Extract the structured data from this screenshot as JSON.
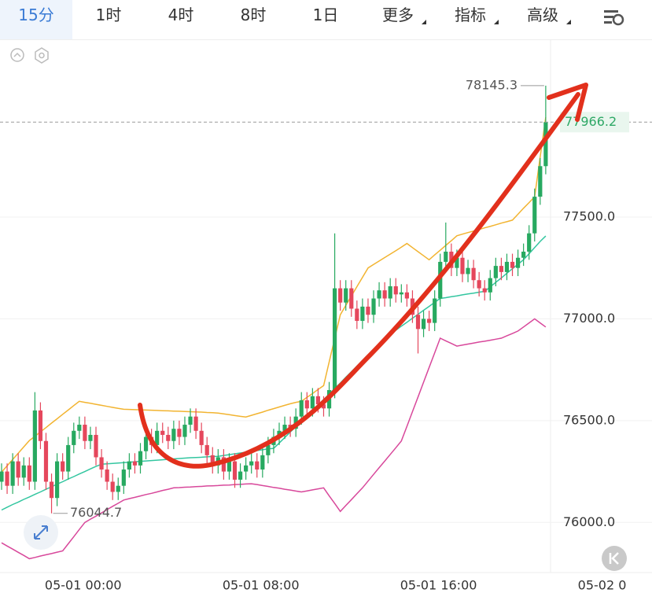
{
  "toolbar": {
    "tabs": [
      "15分",
      "1时",
      "4时",
      "8时",
      "1日",
      "更多",
      "指标",
      "高级"
    ]
  },
  "chart_data": {
    "type": "candlestick",
    "categories": [
      null,
      null,
      null,
      null,
      null,
      null,
      null,
      null,
      null,
      null,
      null,
      null,
      null,
      null,
      null,
      "05-01 00:00",
      null,
      null,
      null,
      null,
      null,
      null,
      null,
      null,
      null,
      null,
      null,
      null,
      null,
      null,
      null,
      null,
      null,
      null,
      null,
      null,
      null,
      null,
      null,
      null,
      null,
      null,
      null,
      null,
      null,
      null,
      null,
      "05-01 08:00",
      null,
      null,
      null,
      null,
      null,
      null,
      null,
      null,
      null,
      null,
      null,
      null,
      null,
      null,
      null,
      null,
      null,
      null,
      null,
      null,
      null,
      null,
      null,
      null,
      null,
      null,
      null,
      null,
      null,
      null,
      null,
      "05-01 16:00",
      null,
      null,
      null,
      null,
      null,
      null,
      null,
      null,
      null,
      null,
      null,
      null,
      null,
      null,
      null,
      null,
      null,
      null,
      null,
      null,
      null,
      null,
      null,
      null,
      null,
      null,
      null,
      null,
      null,
      null,
      null,
      "05-02 0"
    ],
    "open": [
      76200,
      76250,
      76180,
      76300,
      76220,
      76280,
      76200,
      76550,
      76400,
      76200,
      76120,
      76300,
      76250,
      76380,
      76450,
      76480,
      76400,
      76430,
      76320,
      76260,
      76200,
      76150,
      76180,
      76260,
      76300,
      76280,
      76350,
      76420,
      76380,
      76450,
      76430,
      76400,
      76460,
      76420,
      76480,
      76520,
      76450,
      76380,
      76330,
      76280,
      76320,
      76250,
      76300,
      76210,
      76250,
      76280,
      76300,
      76260,
      76330,
      76380,
      76420,
      76450,
      76480,
      76460,
      76520,
      76600,
      76560,
      76620,
      76580,
      76560,
      76650,
      77150,
      77080,
      77150,
      77050,
      76990,
      77060,
      77020,
      77100,
      77140,
      77100,
      77160,
      77120,
      77130,
      77100,
      77020,
      76950,
      77000,
      76980,
      77100,
      77280,
      77330,
      77250,
      77300,
      77220,
      77250,
      77190,
      77150,
      77130,
      77200,
      77260,
      77230,
      77280,
      77250,
      77300,
      77330,
      77420,
      77600,
      77750,
      null,
      null,
      null,
      null,
      null,
      null,
      null,
      null,
      null,
      null,
      null,
      null,
      null
    ],
    "high": [
      76290,
      76290,
      76340,
      76340,
      76320,
      76320,
      76640,
      76590,
      76440,
      76240,
      76340,
      76340,
      76420,
      76490,
      76520,
      76520,
      76470,
      76470,
      76360,
      76300,
      76240,
      76220,
      76300,
      76340,
      76340,
      76390,
      76460,
      76460,
      76490,
      76490,
      76470,
      76500,
      76500,
      76520,
      76560,
      76560,
      76490,
      76420,
      76370,
      76360,
      76360,
      76340,
      76340,
      76290,
      76320,
      76340,
      76340,
      76370,
      76420,
      76460,
      76490,
      76520,
      76520,
      76560,
      76640,
      76640,
      76660,
      76660,
      76620,
      76690,
      77420,
      77190,
      77190,
      77190,
      77090,
      77100,
      77100,
      77140,
      77180,
      77180,
      77200,
      77200,
      77170,
      77170,
      77140,
      77060,
      77040,
      77040,
      77140,
      77320,
      77473,
      77370,
      77340,
      77340,
      77290,
      77290,
      77230,
      77190,
      77240,
      77300,
      77300,
      77320,
      77320,
      77340,
      77370,
      77460,
      77640,
      77790,
      78145.3,
      null,
      null,
      null,
      null,
      null,
      null,
      null,
      null,
      null,
      null,
      null,
      null,
      null
    ],
    "low": [
      76160,
      76140,
      76140,
      76180,
      76180,
      76160,
      76160,
      76360,
      76160,
      76044.7,
      76080,
      76210,
      76210,
      76340,
      76410,
      76360,
      76360,
      76280,
      76220,
      76160,
      76110,
      76110,
      76140,
      76220,
      76240,
      76240,
      76310,
      76340,
      76340,
      76390,
      76360,
      76360,
      76380,
      76380,
      76440,
      76410,
      76340,
      76290,
      76240,
      76240,
      76210,
      76210,
      76170,
      76170,
      76210,
      76240,
      76220,
      76220,
      76290,
      76340,
      76380,
      76410,
      76420,
      76420,
      76480,
      76520,
      76520,
      76540,
      76520,
      76520,
      76610,
      77040,
      77040,
      77010,
      76950,
      76950,
      76980,
      76980,
      77060,
      77060,
      77060,
      77080,
      77080,
      77060,
      76980,
      76830,
      76910,
      76940,
      76940,
      77060,
      77240,
      77210,
      77210,
      77180,
      77180,
      77150,
      77110,
      77090,
      77090,
      77160,
      77190,
      77190,
      77210,
      77210,
      77260,
      77290,
      77380,
      77560,
      77710,
      null,
      null,
      null,
      null,
      null,
      null,
      null,
      null,
      null,
      null,
      null,
      null,
      null
    ],
    "close": [
      76250,
      76180,
      76300,
      76220,
      76280,
      76200,
      76550,
      76400,
      76200,
      76120,
      76300,
      76250,
      76380,
      76450,
      76480,
      76400,
      76430,
      76320,
      76260,
      76200,
      76150,
      76180,
      76260,
      76300,
      76280,
      76350,
      76420,
      76380,
      76450,
      76430,
      76400,
      76460,
      76420,
      76480,
      76520,
      76450,
      76380,
      76330,
      76280,
      76320,
      76250,
      76300,
      76210,
      76250,
      76280,
      76300,
      76260,
      76330,
      76380,
      76420,
      76450,
      76480,
      76460,
      76520,
      76600,
      76560,
      76620,
      76580,
      76560,
      76650,
      77150,
      77080,
      77150,
      77050,
      76990,
      77060,
      77020,
      77100,
      77140,
      77100,
      77160,
      77120,
      77130,
      77100,
      77020,
      76950,
      77000,
      76980,
      77100,
      77280,
      77330,
      77250,
      77300,
      77220,
      77250,
      77190,
      77150,
      77130,
      77200,
      77260,
      77230,
      77280,
      77250,
      77300,
      77330,
      77420,
      77600,
      77750,
      77966.2,
      null,
      null,
      null,
      null,
      null,
      null,
      null,
      null,
      null,
      null,
      null,
      null,
      null
    ],
    "up_color": "#27a960",
    "down_color": "#e5475c",
    "series": [
      {
        "color": "#f2b431",
        "values": [
          76247,
          76278,
          76309,
          76340,
          76371,
          76402,
          76423,
          76445,
          76466,
          76488,
          76509,
          76531,
          76552,
          76574,
          76595,
          76590,
          76585,
          76580,
          76575,
          76570,
          76565,
          76560,
          76556,
          76555,
          76554,
          76553,
          76552,
          76551,
          76550,
          76549,
          76548,
          76547,
          76546,
          76545,
          76544,
          76543,
          76542,
          76540,
          76539,
          76537,
          76533,
          76529,
          76525,
          76521,
          76518,
          76526,
          76534,
          76542,
          76551,
          76559,
          76567,
          76575,
          76583,
          76590,
          76595,
          76614,
          76633,
          76653,
          76672,
          76788,
          76904,
          77020,
          77066,
          77112,
          77158,
          77204,
          77250,
          77267,
          77284,
          77301,
          77318,
          77335,
          77352,
          77370,
          77350,
          77330,
          77310,
          77290,
          77314,
          77337,
          77361,
          77384,
          77408,
          77416,
          77424,
          77431,
          77439,
          77447,
          77454,
          77462,
          77470,
          77477,
          77485,
          77514,
          77543,
          77571,
          77600,
          77795,
          77990,
          null,
          null,
          null,
          null,
          null,
          null,
          null,
          null,
          null,
          null,
          null,
          null,
          null
        ]
      },
      {
        "color": "#33c6a0",
        "values": [
          76061,
          76075,
          76088,
          76100,
          76113,
          76125,
          76138,
          76150,
          76163,
          76175,
          76188,
          76200,
          76213,
          76225,
          76238,
          76250,
          76263,
          76275,
          76286,
          76288,
          76290,
          76292,
          76294,
          76296,
          76298,
          76300,
          76302,
          76304,
          76306,
          76308,
          76310,
          76312,
          76314,
          76316,
          76318,
          76319,
          76320,
          76322,
          76324,
          76325,
          76329,
          76333,
          76337,
          76341,
          76345,
          76349,
          76353,
          76357,
          76361,
          76364,
          76390,
          76417,
          76444,
          76470,
          76497,
          76524,
          76550,
          76577,
          76604,
          76630,
          76658,
          76685,
          76713,
          76740,
          76768,
          76795,
          76823,
          76850,
          76878,
          76905,
          76925,
          76944,
          76964,
          76983,
          77003,
          77022,
          77042,
          77061,
          77081,
          77100,
          77104,
          77109,
          77113,
          77118,
          77122,
          77126,
          77131,
          77135,
          77157,
          77179,
          77201,
          77224,
          77246,
          77268,
          77290,
          77320,
          77350,
          77380,
          77407,
          null,
          null,
          null,
          null,
          null,
          null,
          null,
          null,
          null,
          null,
          null,
          null,
          null
        ]
      },
      {
        "color": "#d8489b",
        "values": [
          75900,
          75884,
          75869,
          75853,
          75838,
          75822,
          75828,
          75835,
          75841,
          75847,
          75854,
          75860,
          75895,
          75930,
          75965,
          76000,
          76016,
          76031,
          76047,
          76063,
          76079,
          76094,
          76110,
          76117,
          76123,
          76130,
          76137,
          76143,
          76150,
          76157,
          76163,
          76170,
          76171,
          76173,
          76174,
          76176,
          76177,
          76179,
          76180,
          76181,
          76183,
          76184,
          76186,
          76187,
          76189,
          76190,
          76186,
          76181,
          76177,
          76172,
          76168,
          76163,
          76159,
          76154,
          76150,
          76155,
          76160,
          76165,
          76170,
          76131,
          76093,
          76054,
          76083,
          76112,
          76141,
          76170,
          76203,
          76236,
          76269,
          76301,
          76334,
          76367,
          76400,
          76472,
          76544,
          76616,
          76689,
          76761,
          76833,
          76905,
          76892,
          76879,
          76866,
          76871,
          76876,
          76881,
          76886,
          76890,
          76895,
          76900,
          76905,
          76917,
          76928,
          76940,
          76960,
          76980,
          77000,
          76980,
          76960,
          null,
          null,
          null,
          null,
          null,
          null,
          null,
          null,
          null,
          null,
          null,
          null,
          null
        ]
      }
    ],
    "ylim": [
      75750,
      78400
    ],
    "yticks": [
      {
        "value": 76000,
        "label": "76000.0"
      },
      {
        "value": 76500,
        "label": "76500.0"
      },
      {
        "value": 77000,
        "label": "77000.0"
      },
      {
        "value": 77500,
        "label": "77500.0"
      }
    ],
    "grid": true
  }
}
